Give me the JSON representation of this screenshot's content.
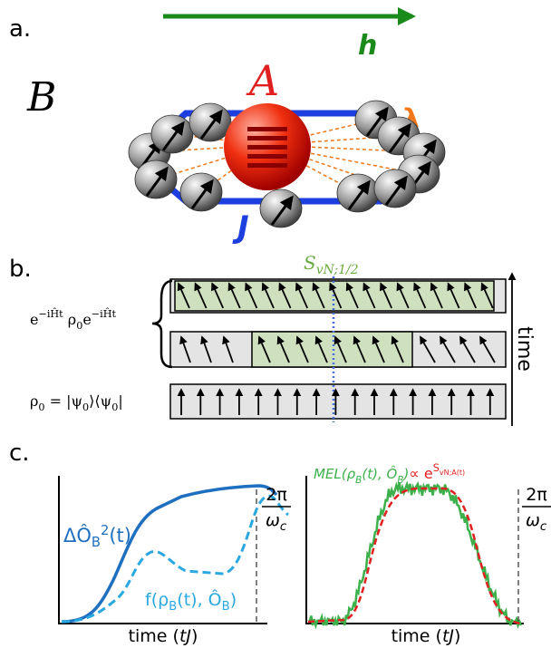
{
  "panel_a": {
    "label": "a.",
    "field": "h",
    "system": "A",
    "bath": "B",
    "coupling": "λ",
    "hopping": "J"
  },
  "panel_b": {
    "label": "b.",
    "entropy": {
      "parts": [
        {
          "text": "S"
        },
        {
          "sub": "vN;1/2"
        }
      ]
    },
    "evolved_state": {
      "parts": [
        {
          "text": "e"
        },
        {
          "sup": "−iĤt"
        },
        {
          "text": " ρ"
        },
        {
          "sub": "0"
        },
        {
          "text": "e"
        },
        {
          "sup": "−iĤt"
        }
      ]
    },
    "initial_state": {
      "parts": [
        {
          "text": "ρ"
        },
        {
          "sub": "0"
        },
        {
          "text": " = |ψ"
        },
        {
          "sub": "0"
        },
        {
          "text": "⟩⟨ψ"
        },
        {
          "sub": "0"
        },
        {
          "text": "|"
        }
      ]
    },
    "time_axis": "time"
  },
  "panel_c": {
    "label": "c.",
    "left": {
      "curve_solid": {
        "parts": [
          {
            "text": "ΔÔ"
          },
          {
            "sub": "B"
          },
          {
            "sup": "2"
          },
          {
            "text": "(t)"
          }
        ]
      },
      "curve_dashed": {
        "parts": [
          {
            "text": "f(ρ"
          },
          {
            "sub": "B"
          },
          {
            "text": "(t), Ô"
          },
          {
            "sub": "B"
          },
          {
            "text": ")"
          }
        ]
      },
      "period": {
        "numerator": "2π",
        "denominator": {
          "parts": [
            {
              "text": "ω"
            },
            {
              "sub": "c"
            }
          ]
        }
      },
      "x_label": {
        "parts": [
          {
            "text": "time ("
          },
          {
            "italic": "tJ"
          },
          {
            "text": ")"
          }
        ]
      }
    },
    "right": {
      "curve_noisy": {
        "parts": [
          {
            "text": "MEL(ρ"
          },
          {
            "sub": "B"
          },
          {
            "text": "(t), Ô"
          },
          {
            "sub": "B"
          },
          {
            "text": ")"
          }
        ]
      },
      "curve_fit": {
        "parts": [
          {
            "text": " ∝ e"
          },
          {
            "sup": "S"
          },
          {
            "supsub": "vN;A(t)"
          }
        ]
      },
      "period": {
        "numerator": "2π",
        "denominator": {
          "parts": [
            {
              "text": "ω"
            },
            {
              "sub": "c"
            }
          ]
        }
      },
      "x_label": {
        "parts": [
          {
            "text": "time ("
          },
          {
            "italic": "tJ"
          },
          {
            "text": ")"
          }
        ]
      }
    }
  }
}
